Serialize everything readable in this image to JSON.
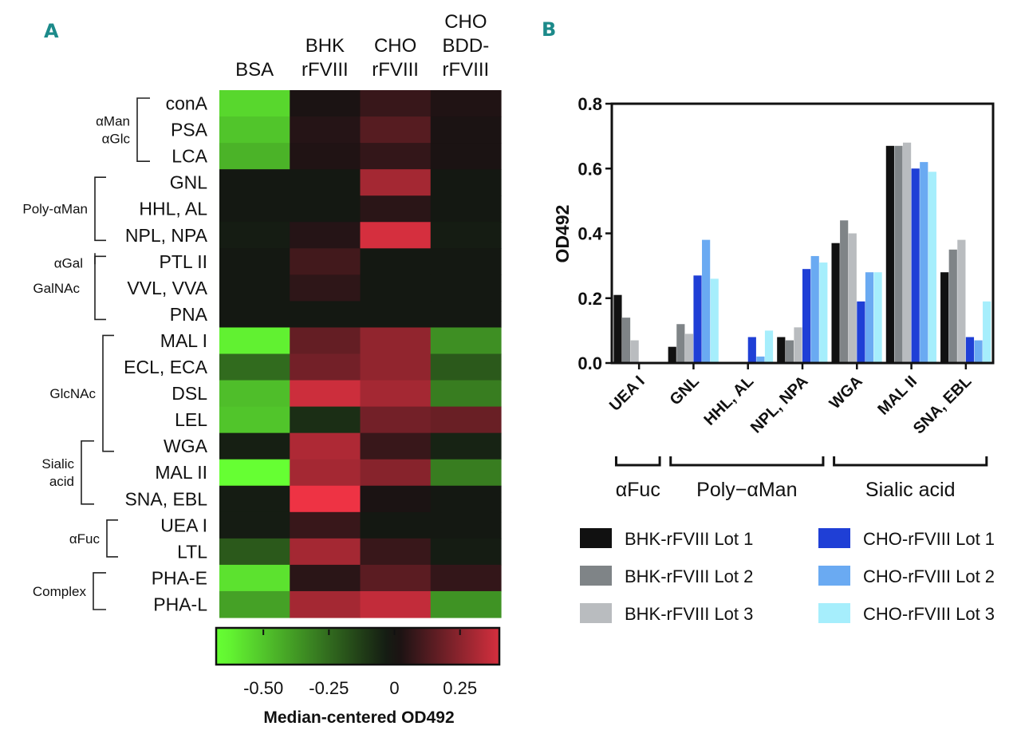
{
  "panels": {
    "a": "A",
    "b": "B"
  },
  "chart_data": [
    {
      "type": "heatmap",
      "panel": "A",
      "columns": [
        "BSA",
        "BHK rFVIII",
        "CHO rFVIII",
        "CHO BDD-rFVIII"
      ],
      "column_header_lines": [
        [
          "BSA"
        ],
        [
          "BHK",
          "rFVIII"
        ],
        [
          "CHO",
          "rFVIII"
        ],
        [
          "CHO",
          "BDD-",
          "rFVIII"
        ]
      ],
      "rows": [
        "conA",
        "PSA",
        "LCA",
        "GNL",
        "HHL, AL",
        "NPL, NPA",
        "PTL II",
        "VVL, VVA",
        "PNA",
        "MAL I",
        "ECL, ECA",
        "DSL",
        "LEL",
        "WGA",
        "MAL II",
        "SNA, EBL",
        "UEA I",
        "LTL",
        "PHA-E",
        "PHA-L"
      ],
      "values": [
        [
          -0.55,
          0.02,
          0.08,
          0.03
        ],
        [
          -0.5,
          0.04,
          0.14,
          0.02
        ],
        [
          -0.45,
          0.03,
          0.07,
          0.02
        ],
        [
          -0.02,
          -0.02,
          0.3,
          -0.02
        ],
        [
          -0.02,
          -0.02,
          0.05,
          -0.02
        ],
        [
          -0.03,
          0.04,
          0.4,
          -0.03
        ],
        [
          -0.02,
          0.1,
          -0.02,
          -0.02
        ],
        [
          -0.02,
          0.06,
          -0.02,
          -0.02
        ],
        [
          -0.02,
          -0.02,
          -0.02,
          -0.02
        ],
        [
          -0.62,
          0.17,
          0.26,
          -0.35
        ],
        [
          -0.25,
          0.2,
          0.26,
          -0.2
        ],
        [
          -0.48,
          0.38,
          0.3,
          -0.3
        ],
        [
          -0.5,
          -0.08,
          0.2,
          0.18
        ],
        [
          -0.04,
          0.32,
          0.08,
          -0.05
        ],
        [
          -0.66,
          0.3,
          0.24,
          -0.3
        ],
        [
          -0.03,
          0.45,
          0.02,
          -0.02
        ],
        [
          -0.03,
          0.08,
          -0.02,
          -0.02
        ],
        [
          -0.2,
          0.3,
          0.08,
          -0.03
        ],
        [
          -0.58,
          0.05,
          0.15,
          0.07
        ],
        [
          -0.4,
          0.3,
          0.36,
          -0.36
        ]
      ],
      "row_groups": [
        {
          "lines": [
            "αMan",
            "αGlc"
          ],
          "rows": [
            0,
            2
          ]
        },
        {
          "lines": [
            "Poly-αMan"
          ],
          "rows": [
            3,
            5
          ]
        },
        {
          "lines": [
            "αGal"
          ],
          "rows": [
            6,
            6
          ]
        },
        {
          "lines": [
            "GalNAc"
          ],
          "rows": [
            7,
            8
          ]
        },
        {
          "lines": [
            "GlcNAc"
          ],
          "rows": [
            9,
            13
          ]
        },
        {
          "lines": [
            "Sialic",
            "acid"
          ],
          "rows": [
            13,
            15
          ]
        },
        {
          "lines": [
            "αFuc"
          ],
          "rows": [
            16,
            17
          ]
        },
        {
          "lines": [
            "Complex"
          ],
          "rows": [
            18,
            19
          ]
        }
      ],
      "colorbar": {
        "range": [
          -0.68,
          0.4
        ],
        "ticks": [
          -0.5,
          -0.25,
          0,
          0.25
        ],
        "tick_labels": [
          "-0.50",
          "-0.25",
          "0",
          "0.25"
        ],
        "label": "Median-centered OD492",
        "colors": {
          "low": "#66ff33",
          "mid": "#111111",
          "high": "#ee3344"
        }
      }
    },
    {
      "type": "bar",
      "panel": "B",
      "categories": [
        "UEA I",
        "GNL",
        "HHL, AL",
        "NPL, NPA",
        "WGA",
        "MAL II",
        "SNA, EBL"
      ],
      "series": [
        {
          "name": "BHK-rFVIII Lot 1",
          "color": "#111111",
          "values": [
            0.21,
            0.05,
            0.0,
            0.08,
            0.37,
            0.67,
            0.28
          ]
        },
        {
          "name": "BHK-rFVIII Lot 2",
          "color": "#7f8487",
          "values": [
            0.14,
            0.12,
            0.0,
            0.07,
            0.44,
            0.67,
            0.35
          ]
        },
        {
          "name": "BHK-rFVIII Lot 3",
          "color": "#b9bcbf",
          "values": [
            0.07,
            0.09,
            0.0,
            0.11,
            0.4,
            0.68,
            0.38
          ]
        },
        {
          "name": "CHO-rFVIII Lot 1",
          "color": "#1f3fd6",
          "values": [
            0.0,
            0.27,
            0.08,
            0.29,
            0.19,
            0.6,
            0.08
          ]
        },
        {
          "name": "CHO-rFVIII Lot 2",
          "color": "#6aaaf2",
          "values": [
            0.0,
            0.38,
            0.02,
            0.33,
            0.28,
            0.62,
            0.07
          ]
        },
        {
          "name": "CHO-rFVIII Lot 3",
          "color": "#a6eefc",
          "values": [
            0.0,
            0.26,
            0.1,
            0.31,
            0.28,
            0.59,
            0.19
          ]
        }
      ],
      "ylabel": "OD492",
      "ylim": [
        0,
        0.8
      ],
      "yticks": [
        0,
        0.2,
        0.4,
        0.6,
        0.8
      ],
      "ytick_labels": [
        "0.0",
        "0.2",
        "0.4",
        "0.6",
        "0.8"
      ],
      "category_groups": [
        {
          "label": "αFuc",
          "from": 0,
          "to": 0
        },
        {
          "label": "Poly−αMan",
          "from": 1,
          "to": 3
        },
        {
          "label": "Sialic acid",
          "from": 4,
          "to": 6
        }
      ],
      "legend_position": "bottom"
    }
  ]
}
